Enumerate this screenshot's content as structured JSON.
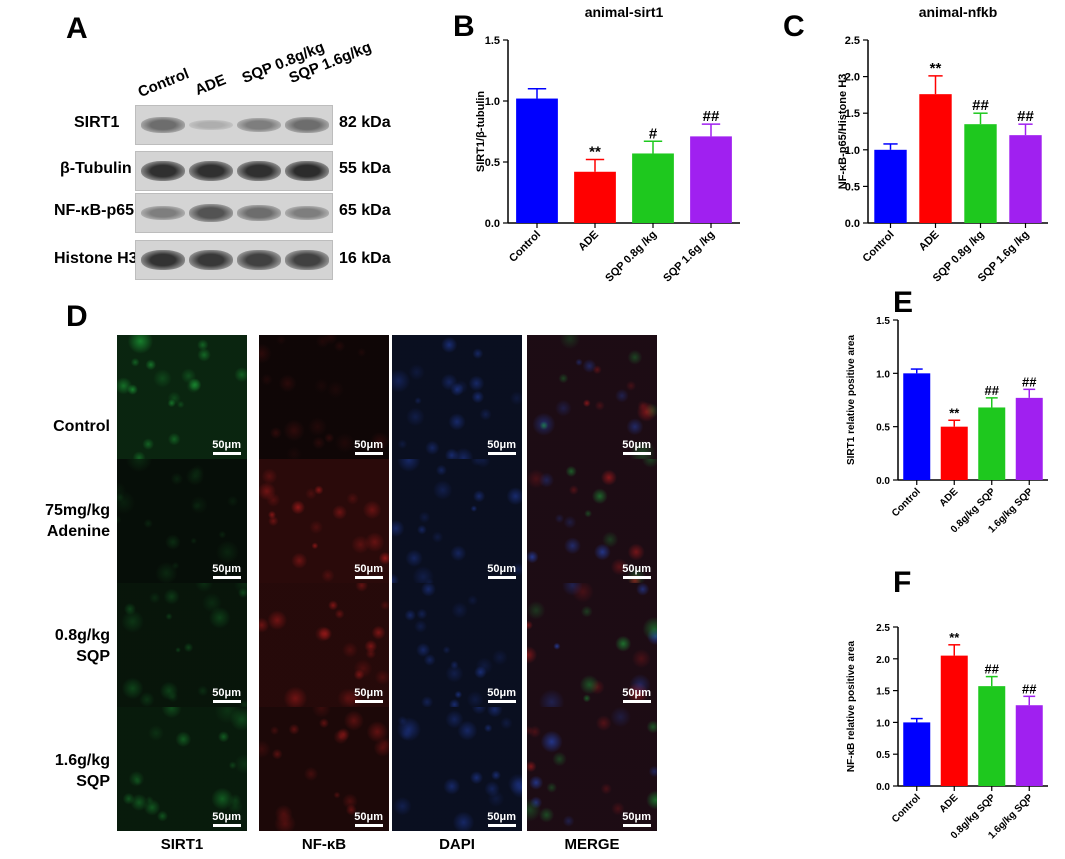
{
  "panel_letters": {
    "a": "A",
    "b": "B",
    "c": "C",
    "d": "D",
    "e": "E",
    "f": "F"
  },
  "western_blot": {
    "lanes": [
      "Control",
      "ADE",
      "SQP 0.8g/kg",
      "SQP 1.6g/kg"
    ],
    "rows": [
      {
        "protein": "SIRT1",
        "kda": "82 kDa",
        "intensity": [
          0.55,
          0.18,
          0.45,
          0.55
        ]
      },
      {
        "protein": "β-Tubulin",
        "kda": "55 kDa",
        "intensity": [
          0.9,
          0.9,
          0.9,
          0.92
        ]
      },
      {
        "protein": "NF-κB-p65",
        "kda": "65 kDa",
        "intensity": [
          0.45,
          0.7,
          0.55,
          0.45
        ]
      },
      {
        "protein": "Histone H3",
        "kda": "16 kDa",
        "intensity": [
          0.88,
          0.85,
          0.8,
          0.8
        ]
      }
    ]
  },
  "if_grid": {
    "row_labels": [
      [
        "Control"
      ],
      [
        "75mg/kg",
        "Adenine"
      ],
      [
        "0.8g/kg",
        "SQP"
      ],
      [
        "1.6g/kg",
        "SQP"
      ]
    ],
    "col_labels": [
      "SIRT1",
      "NF-κB",
      "DAPI",
      "MERGE"
    ],
    "scale_bar": "50μm",
    "channel_colors": [
      "#1ea83a",
      "#c01e1e",
      "#2a4ed0",
      "#8a3a6a"
    ],
    "signal_levels": [
      [
        0.9,
        0.25,
        0.6,
        0.8
      ],
      [
        0.25,
        0.9,
        0.6,
        0.8
      ],
      [
        0.45,
        0.8,
        0.6,
        0.8
      ],
      [
        0.6,
        0.55,
        0.6,
        0.8
      ]
    ]
  },
  "chart_data": [
    {
      "id": "B",
      "type": "bar",
      "title": "animal-sirt1",
      "ylabel": "SIRT1/β-tubulin",
      "categories": [
        "Control",
        "ADE",
        "SQP 0.8g /kg",
        "SQP 1.6g /kg"
      ],
      "values": [
        1.02,
        0.42,
        0.57,
        0.71
      ],
      "errors": [
        0.08,
        0.1,
        0.1,
        0.1
      ],
      "annotations": [
        "",
        "**",
        "#",
        "##"
      ],
      "colors": [
        "#0000ff",
        "#ff0000",
        "#1ec81e",
        "#a020f0"
      ],
      "ylim": [
        0,
        1.5
      ],
      "yticks": [
        "0.0",
        "0.5",
        "1.0",
        "1.5"
      ],
      "grid": false
    },
    {
      "id": "C",
      "type": "bar",
      "title": "animal-nfkb",
      "ylabel": "NF-κB-p65/Histone H3",
      "categories": [
        "Control",
        "ADE",
        "SQP 0.8g /kg",
        "SQP 1.6g /kg"
      ],
      "values": [
        1.0,
        1.76,
        1.35,
        1.2
      ],
      "errors": [
        0.08,
        0.25,
        0.15,
        0.15
      ],
      "annotations": [
        "",
        "**",
        "##",
        "##"
      ],
      "colors": [
        "#0000ff",
        "#ff0000",
        "#1ec81e",
        "#a020f0"
      ],
      "ylim": [
        0,
        2.5
      ],
      "yticks": [
        "0.0",
        "0.5",
        "1.0",
        "1.5",
        "2.0",
        "2.5"
      ],
      "grid": false
    },
    {
      "id": "E",
      "type": "bar",
      "title": "",
      "ylabel": "SIRT1 relative positive area",
      "categories": [
        "Control",
        "ADE",
        "0.8g/kg SQP",
        "1.6g/kg SQP"
      ],
      "values": [
        1.0,
        0.5,
        0.68,
        0.77
      ],
      "errors": [
        0.04,
        0.06,
        0.09,
        0.08
      ],
      "annotations": [
        "",
        "**",
        "##",
        "##"
      ],
      "colors": [
        "#0000ff",
        "#ff0000",
        "#1ec81e",
        "#a020f0"
      ],
      "ylim": [
        0,
        1.5
      ],
      "yticks": [
        "0.0",
        "0.5",
        "1.0",
        "1.5"
      ],
      "grid": false
    },
    {
      "id": "F",
      "type": "bar",
      "title": "",
      "ylabel": "NF-κB relative positive area",
      "categories": [
        "Control",
        "ADE",
        "0.8g/kg SQP",
        "1.6g/kg SQP"
      ],
      "values": [
        1.0,
        2.05,
        1.57,
        1.27
      ],
      "errors": [
        0.06,
        0.17,
        0.15,
        0.14
      ],
      "annotations": [
        "",
        "**",
        "##",
        "##"
      ],
      "colors": [
        "#0000ff",
        "#ff0000",
        "#1ec81e",
        "#a020f0"
      ],
      "ylim": [
        0,
        2.5
      ],
      "yticks": [
        "0.0",
        "0.5",
        "1.0",
        "1.5",
        "2.0",
        "2.5"
      ],
      "grid": false
    }
  ]
}
